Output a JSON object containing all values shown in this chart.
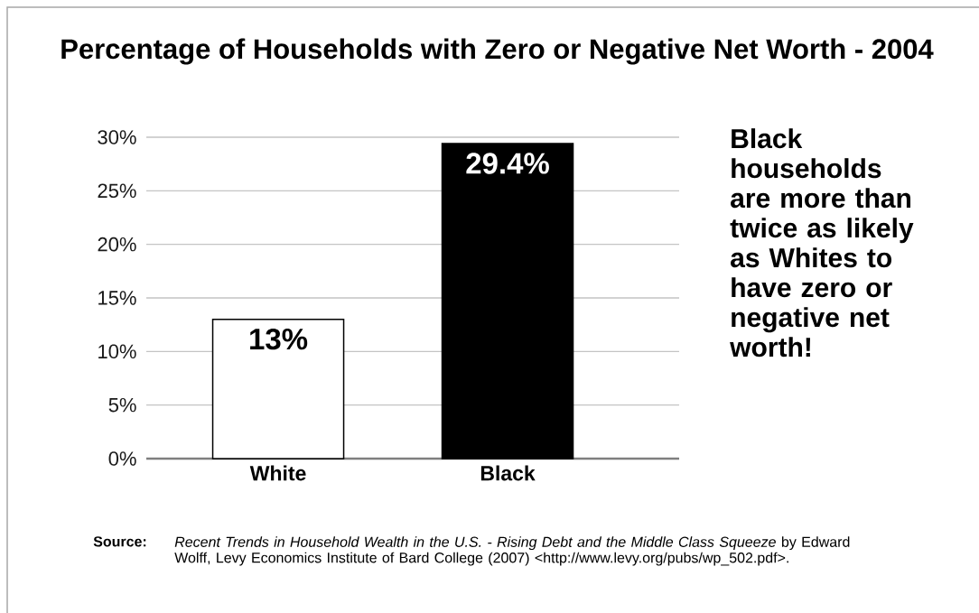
{
  "chart_data": {
    "type": "bar",
    "title": "Percentage of Households with Zero or Negative Net Worth - 2004",
    "categories": [
      "White",
      "Black"
    ],
    "values": [
      13,
      29.4
    ],
    "colors": [
      "#ffffff",
      "#000000"
    ],
    "value_labels": [
      "13%",
      "29.4%"
    ],
    "ylim": [
      0,
      30
    ],
    "yticks": [
      {
        "value": 0,
        "label": "0%"
      },
      {
        "value": 5,
        "label": "5%"
      },
      {
        "value": 10,
        "label": "10%"
      },
      {
        "value": 15,
        "label": "15%"
      },
      {
        "value": 20,
        "label": "20%"
      },
      {
        "value": 25,
        "label": "25%"
      },
      {
        "value": 30,
        "label": "30%"
      }
    ],
    "grid": "y",
    "annotations": [
      "Black households are more than twice as likely as Whites to have zero or negative net worth!",
      "Source:",
      "*Recent Trends in Household Wealth in the U.S. - Rising Debt and the Middle Class Squeeze* by Edward Wolff, Levy Economics Institute of Bard College (2007) <http://www.levy.org/pubs/wp_502.pdf>."
    ]
  }
}
